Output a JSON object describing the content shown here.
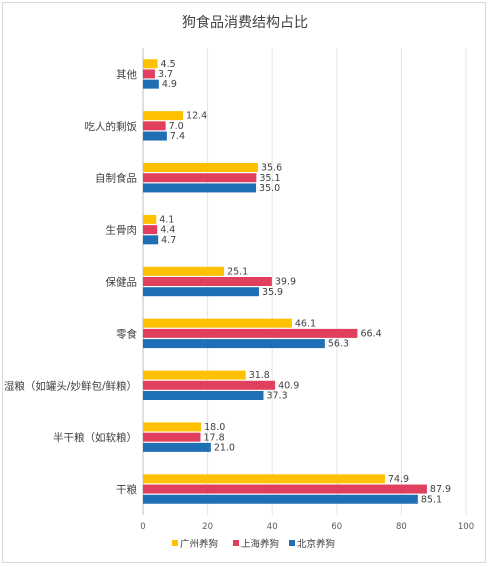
{
  "chart_data": {
    "type": "bar",
    "orientation": "horizontal",
    "title": "狗食品消费结构占比",
    "categories": [
      "其他",
      "吃人的剩饭",
      "自制食品",
      "生骨肉",
      "保健品",
      "零食",
      "湿粮（如罐头/妙鲜包/鲜粮）",
      "半干粮（如软粮）",
      "干粮"
    ],
    "series": [
      {
        "name": "广州养狗",
        "color": "#FFC000",
        "values": [
          4.5,
          12.4,
          35.6,
          4.1,
          25.1,
          46.1,
          31.8,
          18.0,
          74.9
        ]
      },
      {
        "name": "上海养狗",
        "color": "#E0405E",
        "values": [
          3.7,
          7.0,
          35.1,
          4.4,
          39.9,
          66.4,
          40.9,
          17.8,
          87.9
        ]
      },
      {
        "name": "北京养狗",
        "color": "#1F6FB5",
        "values": [
          4.9,
          7.4,
          35.0,
          4.7,
          35.9,
          56.3,
          37.3,
          21.0,
          85.1
        ]
      }
    ],
    "xlim": [
      0,
      100
    ],
    "xticks": [
      0,
      20,
      40,
      60,
      80,
      100
    ],
    "grid": true,
    "legend_position": "bottom"
  }
}
